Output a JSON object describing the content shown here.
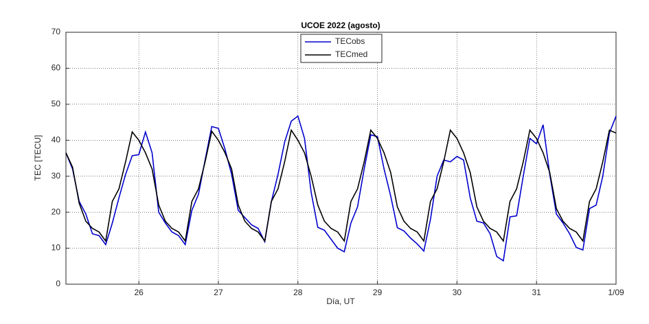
{
  "chart_data": {
    "type": "line",
    "title": "UCOE 2022 (agosto)",
    "x_label": "Día, UT",
    "y_label": "TEC [TECU]",
    "x": [
      25.0833,
      25.1667,
      25.25,
      25.3333,
      25.4167,
      25.5,
      25.5833,
      25.6667,
      25.75,
      25.8333,
      25.9167,
      26,
      26.0833,
      26.1667,
      26.25,
      26.3333,
      26.4167,
      26.5,
      26.5833,
      26.6667,
      26.75,
      26.8333,
      26.9167,
      27,
      27.0833,
      27.1667,
      27.25,
      27.3333,
      27.4167,
      27.5,
      27.5833,
      27.6667,
      27.75,
      27.8333,
      27.9167,
      28,
      28.0833,
      28.1667,
      28.25,
      28.3333,
      28.4167,
      28.5,
      28.5833,
      28.6667,
      28.75,
      28.8333,
      28.9167,
      29,
      29.0833,
      29.1667,
      29.25,
      29.3333,
      29.4167,
      29.5,
      29.5833,
      29.6667,
      29.75,
      29.8333,
      29.9167,
      30,
      30.0833,
      30.1667,
      30.25,
      30.3333,
      30.4167,
      30.5,
      30.5833,
      30.6667,
      30.75,
      30.8333,
      30.9167,
      31,
      31.0833,
      31.1667,
      31.25,
      31.3333,
      31.4167,
      31.5,
      31.5833,
      31.6667,
      31.75,
      31.8333,
      31.9167,
      32
    ],
    "series": [
      {
        "name": "TECobs",
        "color": "#0000cd",
        "values": [
          36.5,
          32,
          23,
          19.5,
          14,
          13.5,
          11,
          17,
          24,
          30.5,
          35.7,
          36,
          42.3,
          36.5,
          20,
          17,
          14.5,
          13.5,
          11,
          20.5,
          25,
          34.5,
          43.8,
          43.3,
          37.5,
          30.5,
          20.5,
          18.5,
          16.5,
          15.5,
          11.8,
          23,
          30.5,
          39.5,
          45.3,
          46.7,
          40.5,
          25.5,
          15.8,
          15,
          12.5,
          10,
          9,
          17,
          21.5,
          32,
          41.5,
          41,
          32,
          24.5,
          15.7,
          14.8,
          12.8,
          11.2,
          9.2,
          18,
          30,
          34.5,
          34,
          35.5,
          34.5,
          24,
          17.5,
          17,
          14,
          7.7,
          6.5,
          18.7,
          19,
          30,
          40.5,
          39,
          44.3,
          30.5,
          19.5,
          17,
          14,
          10.2,
          9.5,
          21,
          22,
          30,
          42,
          46.7
        ]
      },
      {
        "name": "TECmed",
        "color": "#000000",
        "values": [
          36.5,
          32.5,
          22.5,
          17.5,
          15.5,
          14.5,
          12,
          23,
          26.5,
          34,
          42.3,
          40,
          36.5,
          32,
          22,
          17.5,
          15.5,
          14.5,
          12,
          23,
          26.5,
          34,
          42.5,
          40,
          36.5,
          32,
          22,
          17.5,
          15.5,
          14.5,
          12,
          23,
          26.5,
          34,
          42.8,
          40,
          36.5,
          30,
          22,
          17.5,
          15.5,
          14.5,
          12,
          23,
          26.5,
          34,
          42.8,
          40.5,
          36.5,
          31,
          21.5,
          17.5,
          15.5,
          14.5,
          12,
          23,
          26.5,
          34,
          42.8,
          40.5,
          36.5,
          31,
          21.5,
          17.5,
          15.5,
          14.5,
          12,
          23,
          26.5,
          34,
          42.8,
          40.5,
          36.5,
          31,
          21,
          17.5,
          15.5,
          14.5,
          12,
          23,
          26.5,
          34,
          42.8,
          42
        ]
      }
    ],
    "xlim": [
      25.0833,
      32
    ],
    "xticks": [
      26,
      27,
      28,
      29,
      30,
      31,
      {
        "value": 32,
        "label": "1/09"
      }
    ],
    "ylim": [
      0,
      70
    ],
    "yticks": [
      0,
      10,
      20,
      30,
      40,
      50,
      60,
      70
    ],
    "grid": true,
    "legend": "top"
  }
}
